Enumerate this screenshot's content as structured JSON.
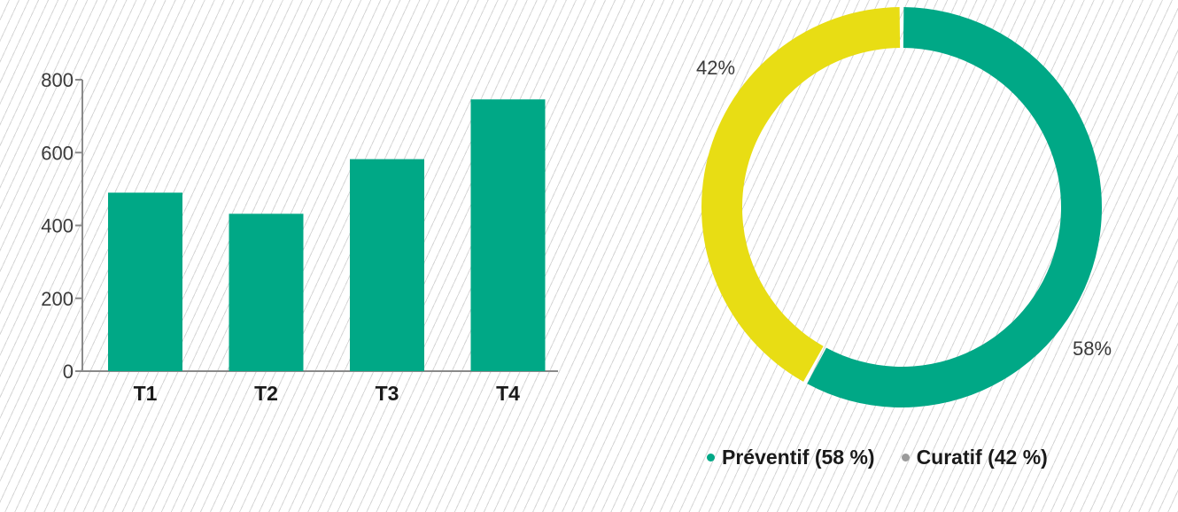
{
  "chart_data": [
    {
      "type": "bar",
      "categories": [
        "T1",
        "T2",
        "T3",
        "T4"
      ],
      "values": [
        490,
        432,
        582,
        746
      ],
      "yticks": [
        "0",
        "200",
        "400",
        "600",
        "800"
      ],
      "ylim": [
        0,
        800
      ],
      "title": "",
      "xlabel": "",
      "ylabel": "",
      "color": "#00a886",
      "axis_color": "#8a8a8a",
      "grid": false
    },
    {
      "type": "pie",
      "donut": true,
      "labels": [
        "Préventif (58 %)",
        "Curatif (42 %)"
      ],
      "values": [
        58,
        42
      ],
      "slice_labels": [
        "58%",
        "42%"
      ],
      "colors": [
        "#00a886",
        "#e8dd14"
      ],
      "legend_dot_colors": [
        "#00a886",
        "#9a9a9a"
      ],
      "legend_position": "bottom"
    }
  ]
}
